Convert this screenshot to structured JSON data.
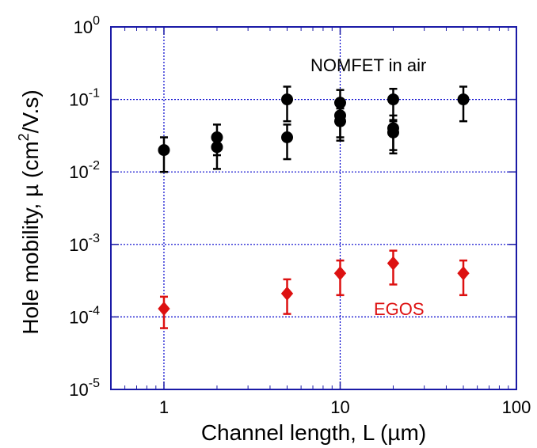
{
  "chart_data": {
    "type": "scatter",
    "title": "",
    "xlabel_prefix": "Channel length, L (",
    "xlabel_unit": "µm",
    "xlabel_suffix": ")",
    "ylabel_prefix": "Hole mobility, µ (cm",
    "ylabel_sup": "2",
    "ylabel_suffix": "/V.s)",
    "x_scale": "log",
    "y_scale": "log",
    "xlim": [
      0.5,
      100
    ],
    "ylim": [
      1e-05,
      1
    ],
    "x_ticks": [
      {
        "value": 1,
        "label": "1"
      },
      {
        "value": 10,
        "label": "10"
      },
      {
        "value": 100,
        "label": "100"
      }
    ],
    "y_ticks": [
      {
        "value": 1e-05,
        "base": "10",
        "exp": "-5"
      },
      {
        "value": 0.0001,
        "base": "10",
        "exp": "-4"
      },
      {
        "value": 0.001,
        "base": "10",
        "exp": "-3"
      },
      {
        "value": 0.01,
        "base": "10",
        "exp": "-2"
      },
      {
        "value": 0.1,
        "base": "10",
        "exp": "-1"
      },
      {
        "value": 1,
        "base": "10",
        "exp": "0"
      }
    ],
    "grid": true,
    "grid_color": "#0000cc",
    "frame_color": "#1a1aa6",
    "series": [
      {
        "annotation": "NOMFET in air",
        "color": "#000000",
        "marker": "circle",
        "points": [
          {
            "x": 1,
            "y": 0.02,
            "lo": 0.01,
            "hi": 0.03
          },
          {
            "x": 2,
            "y": 0.03,
            "lo": 0.017,
            "hi": 0.045
          },
          {
            "x": 2,
            "y": 0.022,
            "lo": 0.011,
            "hi": 0.033
          },
          {
            "x": 5,
            "y": 0.1,
            "lo": 0.05,
            "hi": 0.15
          },
          {
            "x": 5,
            "y": 0.03,
            "lo": 0.015,
            "hi": 0.045
          },
          {
            "x": 10,
            "y": 0.09,
            "lo": 0.045,
            "hi": 0.135
          },
          {
            "x": 10,
            "y": 0.06,
            "lo": 0.03,
            "hi": 0.09
          },
          {
            "x": 10,
            "y": 0.05,
            "lo": 0.027,
            "hi": 0.075
          },
          {
            "x": 20,
            "y": 0.1,
            "lo": 0.05,
            "hi": 0.14
          },
          {
            "x": 20,
            "y": 0.04,
            "lo": 0.02,
            "hi": 0.06
          },
          {
            "x": 20,
            "y": 0.035,
            "lo": 0.018,
            "hi": 0.052
          },
          {
            "x": 50,
            "y": 0.1,
            "lo": 0.05,
            "hi": 0.15
          }
        ]
      },
      {
        "annotation": "EGOS",
        "color": "#dd1111",
        "marker": "diamond",
        "points": [
          {
            "x": 1,
            "y": 0.00013,
            "lo": 7e-05,
            "hi": 0.00019
          },
          {
            "x": 5,
            "y": 0.00021,
            "lo": 0.00011,
            "hi": 0.00033
          },
          {
            "x": 10,
            "y": 0.0004,
            "lo": 0.0002,
            "hi": 0.0006
          },
          {
            "x": 20,
            "y": 0.00055,
            "lo": 0.00028,
            "hi": 0.00082
          },
          {
            "x": 50,
            "y": 0.0004,
            "lo": 0.0002,
            "hi": 0.0006
          }
        ]
      }
    ]
  }
}
